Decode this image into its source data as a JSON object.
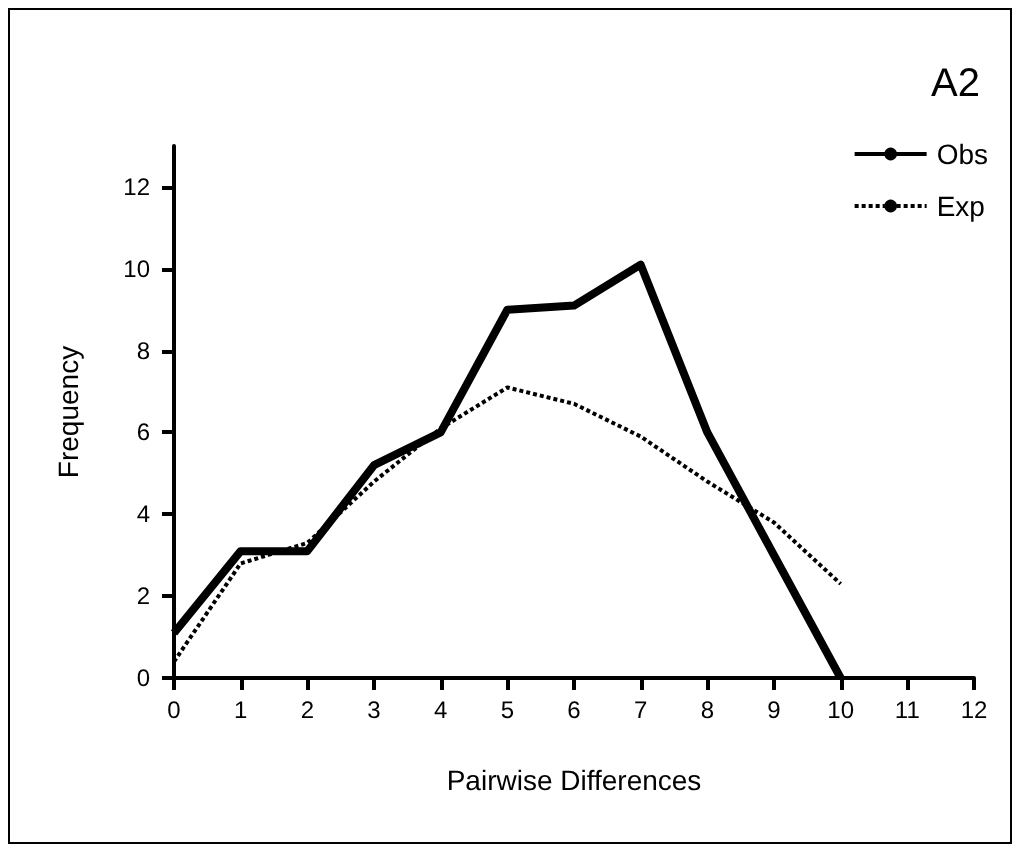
{
  "chart_data": {
    "type": "line",
    "title": "A2",
    "xlabel": "Pairwise Differences",
    "ylabel": "Frequency",
    "x": [
      0,
      1,
      2,
      3,
      4,
      5,
      6,
      7,
      8,
      9,
      10
    ],
    "series": [
      {
        "name": "Obs",
        "color": "#000000",
        "line_style": "solid",
        "values": [
          1.1,
          3.1,
          3.1,
          5.2,
          6.0,
          9.0,
          9.1,
          10.1,
          6.0,
          3.0,
          0
        ]
      },
      {
        "name": "Exp",
        "color": "#000000",
        "line_style": "dotted",
        "values": [
          0.4,
          2.8,
          3.3,
          4.8,
          6.1,
          7.1,
          6.7,
          5.9,
          4.8,
          3.8,
          2.3
        ]
      }
    ],
    "xlim": [
      0,
      12
    ],
    "xticks": [
      0,
      1,
      2,
      3,
      4,
      5,
      6,
      7,
      8,
      9,
      10,
      11,
      12
    ],
    "ylim": [
      0,
      13
    ],
    "yticks": [
      0,
      2,
      4,
      6,
      8,
      10,
      12
    ],
    "grid": false,
    "legend": "top right",
    "marker": "none"
  }
}
